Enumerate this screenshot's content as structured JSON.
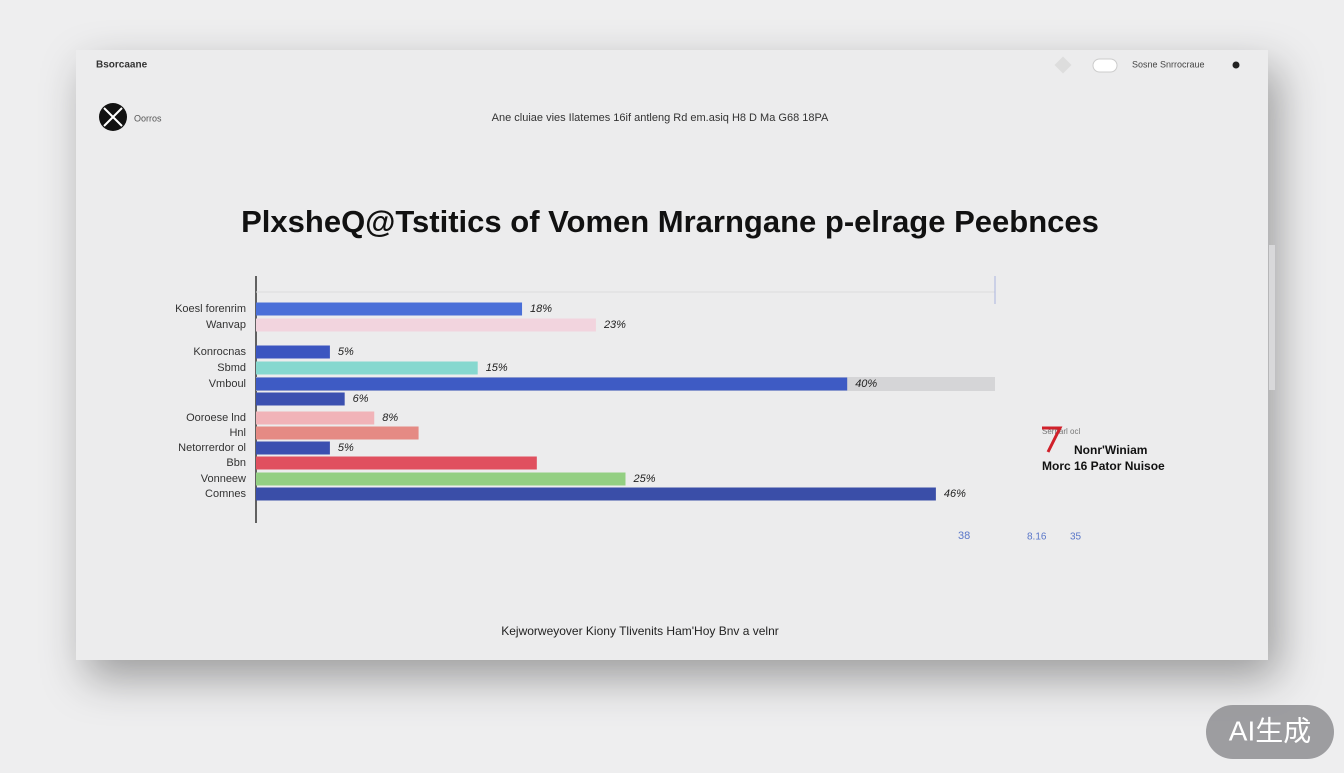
{
  "header": {
    "brand": "Bsorcaane",
    "nav_right": "Sosne Snrrocraue",
    "logo_text": "Oorros",
    "tagline": "Ane cluiae vies Ilatemes 16if antleng Rd em.asiq H8 D Ma G68 18PA"
  },
  "chart_data": {
    "type": "hbar",
    "title": "PlхsheQ@Tstitics of Vomen Mrarngane р-elrage Peebnces",
    "categories": [
      "Koesl forenrim",
      "Wanvap",
      "Konrocnas",
      "Sbmd",
      "Vmboul",
      null,
      "Ooroese lnd",
      "Hnl",
      "Netorrerdor ol",
      "Bbn",
      "Vonneew",
      "Comnes"
    ],
    "values": [
      18,
      23,
      5,
      15,
      40,
      6,
      8,
      11,
      5,
      19,
      25,
      46
    ],
    "value_labels": [
      "18%",
      "23%",
      "5%",
      "15%",
      "40%",
      "6%",
      "8%",
      null,
      "5%",
      null,
      "25%",
      "46%"
    ],
    "colors": [
      "#4a6fd8",
      "#f2d4de",
      "#3b55c0",
      "#86d8cf",
      "#3e5bc4",
      "#3b50b0",
      "#f1b3b8",
      "#e58a84",
      "#3b50b0",
      "#e0505f",
      "#93cf82",
      "#3a4ea8"
    ],
    "xlim": [
      0,
      50
    ],
    "annotation": [
      "Nonr'Winiam",
      "Morc 16 Pator Nuisoe"
    ],
    "footer_numbers": [
      "38",
      "8.16",
      "35"
    ],
    "footnote": "Kejworweyover Kiony Tlivenits Ham'Hoy Bnv a velnr"
  },
  "watermark": "AI生成"
}
